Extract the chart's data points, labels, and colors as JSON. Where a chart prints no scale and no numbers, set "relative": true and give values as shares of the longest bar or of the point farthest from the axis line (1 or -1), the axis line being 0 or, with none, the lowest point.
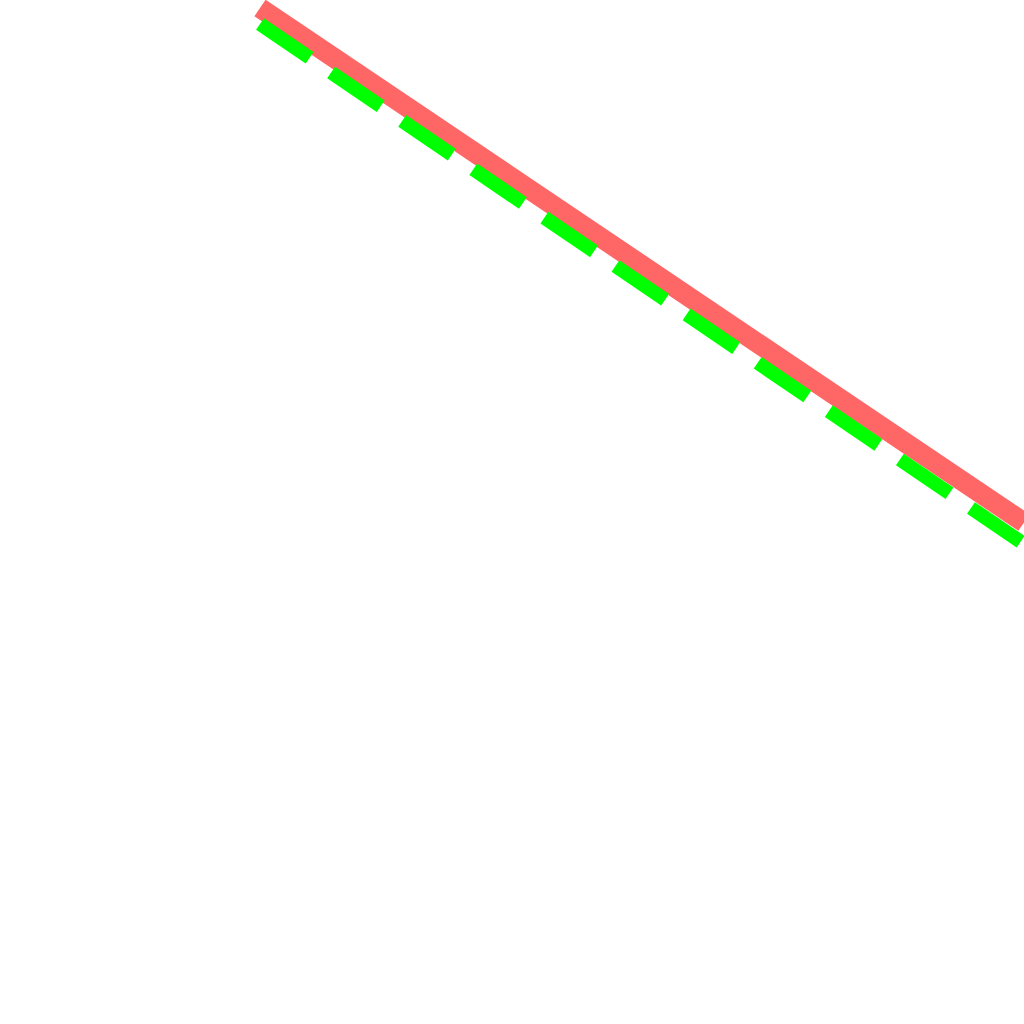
{
  "chart_data": {
    "type": "line",
    "relative": true,
    "categories": [
      null,
      null
    ],
    "series": [
      {
        "color": "#ff6666",
        "values": [
          1,
          0.04
        ],
        "line_style": "solid"
      },
      {
        "color": "#00ff00",
        "values": [
          0.97,
          0
        ],
        "line_style": "dashed"
      }
    ]
  }
}
